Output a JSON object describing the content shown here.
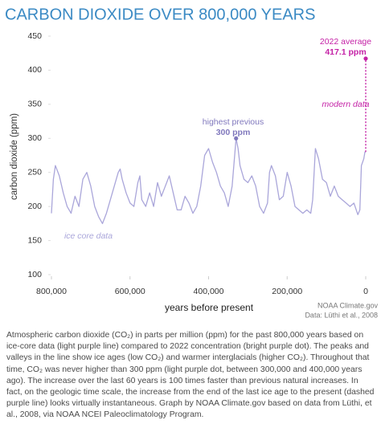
{
  "chart_data": {
    "type": "line",
    "title": "CARBON DIOXIDE OVER 800,000 YEARS",
    "xlabel": "years before present",
    "ylabel": "carbon dioxide (ppm)",
    "source": [
      "NOAA Climate.gov",
      "Data: Lüthi et al., 2008"
    ],
    "xlim": [
      800000,
      0
    ],
    "ylim": [
      100,
      450
    ],
    "xticks": [
      {
        "value": 800000,
        "label": "800,000"
      },
      {
        "value": 600000,
        "label": "600,000"
      },
      {
        "value": 400000,
        "label": "400,000"
      },
      {
        "value": 200000,
        "label": "200,000"
      },
      0
    ],
    "yticks": [
      100,
      150,
      200,
      250,
      300,
      350,
      400,
      450
    ],
    "grid": false,
    "series": [
      {
        "name": "ice core data",
        "color": "#aaa6da",
        "dashed": false,
        "x": [
          800000,
          795000,
          790000,
          780000,
          770000,
          760000,
          750000,
          740000,
          730000,
          720000,
          710000,
          700000,
          690000,
          680000,
          670000,
          660000,
          650000,
          640000,
          630000,
          625000,
          620000,
          610000,
          600000,
          590000,
          580000,
          575000,
          570000,
          560000,
          550000,
          540000,
          530000,
          520000,
          510000,
          500000,
          490000,
          480000,
          470000,
          460000,
          450000,
          440000,
          430000,
          420000,
          410000,
          400000,
          390000,
          380000,
          370000,
          360000,
          350000,
          340000,
          330000,
          325000,
          320000,
          310000,
          300000,
          290000,
          280000,
          270000,
          260000,
          250000,
          245000,
          240000,
          230000,
          220000,
          210000,
          200000,
          190000,
          180000,
          170000,
          160000,
          150000,
          140000,
          135000,
          128000,
          120000,
          110000,
          100000,
          90000,
          80000,
          70000,
          60000,
          50000,
          40000,
          30000,
          20000,
          15000,
          11000,
          8000,
          5000,
          2000,
          0
        ],
        "values": [
          190,
          240,
          260,
          245,
          220,
          200,
          190,
          215,
          200,
          240,
          250,
          230,
          200,
          185,
          175,
          190,
          210,
          230,
          250,
          255,
          240,
          220,
          205,
          200,
          235,
          245,
          210,
          200,
          220,
          200,
          235,
          215,
          230,
          245,
          220,
          195,
          195,
          215,
          205,
          190,
          200,
          230,
          275,
          285,
          265,
          250,
          230,
          220,
          200,
          230,
          300,
          285,
          260,
          240,
          235,
          245,
          230,
          200,
          190,
          205,
          250,
          260,
          245,
          210,
          215,
          250,
          230,
          200,
          195,
          190,
          195,
          190,
          210,
          285,
          270,
          240,
          235,
          215,
          230,
          215,
          210,
          205,
          200,
          205,
          188,
          195,
          260,
          265,
          270,
          280,
          280
        ]
      },
      {
        "name": "modern data",
        "color": "#c421a6",
        "dashed": true,
        "x": [
          0,
          0
        ],
        "values": [
          280,
          417.1
        ]
      }
    ],
    "annotations": [
      {
        "text": "2022 average",
        "value_label": "417.1 ppm",
        "x": 0,
        "y": 417.1,
        "color": "#c421a6"
      },
      {
        "text": "highest previous",
        "value_label": "300 ppm",
        "x": 330000,
        "y": 300,
        "color": "#8078bd"
      }
    ]
  },
  "caption": "Atmospheric carbon dioxide (CO₂) in parts per million (ppm) for the past 800,000 years based on ice-core data (light purple line) compared to 2022 concentration (bright purple dot). The peaks and valleys in the line show ice ages (low CO₂) and warmer interglacials (higher CO₂). Throughout that time, CO₂ was never higher than 300 ppm (light purple dot, between 300,000 and 400,000 years ago). The increase over the last 60 years is 100 times faster than previous natural increases. In fact, on the geologic time scale, the increase from the end of the last ice age to the present (dashed purple line) looks virtually instantaneous. Graph by NOAA Climate.gov based on data from Lüthi, et al., 2008, via NOAA NCEI Paleoclimatology Program."
}
